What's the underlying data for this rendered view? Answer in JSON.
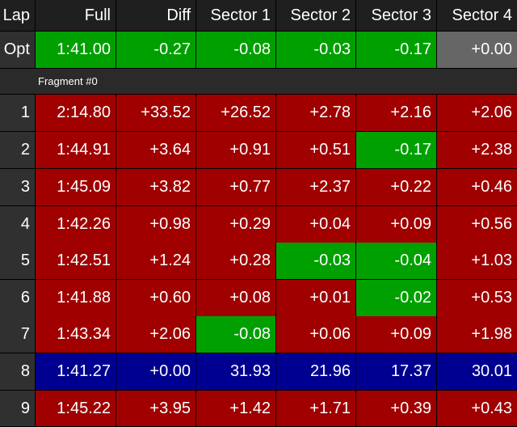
{
  "headers": [
    "Lap",
    "Full",
    "Diff",
    "Sector 1",
    "Sector 2",
    "Sector 3",
    "Sector 4"
  ],
  "opt": {
    "lap": "Opt",
    "cells": [
      "1:41.00",
      "-0.27",
      "-0.08",
      "-0.03",
      "-0.17",
      "+0.00"
    ],
    "colors": [
      "green",
      "green",
      "green",
      "green",
      "green",
      "gray"
    ]
  },
  "fragment_label": "Fragment #0",
  "laps": [
    {
      "lap": "1",
      "cells": [
        "2:14.80",
        "+33.52",
        "+26.52",
        "+2.78",
        "+2.16",
        "+2.06"
      ],
      "colors": [
        "red",
        "red",
        "red",
        "red",
        "red",
        "red"
      ]
    },
    {
      "lap": "2",
      "cells": [
        "1:44.91",
        "+3.64",
        "+0.91",
        "+0.51",
        "-0.17",
        "+2.38"
      ],
      "colors": [
        "red",
        "red",
        "red",
        "red",
        "green",
        "red"
      ]
    },
    {
      "lap": "3",
      "cells": [
        "1:45.09",
        "+3.82",
        "+0.77",
        "+2.37",
        "+0.22",
        "+0.46"
      ],
      "colors": [
        "red",
        "red",
        "red",
        "red",
        "red",
        "red"
      ]
    },
    {
      "lap": "4",
      "cells": [
        "1:42.26",
        "+0.98",
        "+0.29",
        "+0.04",
        "+0.09",
        "+0.56"
      ],
      "colors": [
        "red",
        "red",
        "red",
        "red",
        "red",
        "red"
      ]
    },
    {
      "lap": "5",
      "cells": [
        "1:42.51",
        "+1.24",
        "+0.28",
        "-0.03",
        "-0.04",
        "+1.03"
      ],
      "colors": [
        "red",
        "red",
        "red",
        "green",
        "green",
        "red"
      ]
    },
    {
      "lap": "6",
      "cells": [
        "1:41.88",
        "+0.60",
        "+0.08",
        "+0.01",
        "-0.02",
        "+0.53"
      ],
      "colors": [
        "red",
        "red",
        "red",
        "red",
        "green",
        "red"
      ]
    },
    {
      "lap": "7",
      "cells": [
        "1:43.34",
        "+2.06",
        "-0.08",
        "+0.06",
        "+0.09",
        "+1.98"
      ],
      "colors": [
        "red",
        "red",
        "green",
        "red",
        "red",
        "red"
      ]
    },
    {
      "lap": "8",
      "cells": [
        "1:41.27",
        "+0.00",
        "31.93",
        "21.96",
        "17.37",
        "30.01"
      ],
      "colors": [
        "blue",
        "blue",
        "blue",
        "blue",
        "blue",
        "blue"
      ]
    },
    {
      "lap": "9",
      "cells": [
        "1:45.22",
        "+3.95",
        "+1.42",
        "+1.71",
        "+0.39",
        "+0.43"
      ],
      "colors": [
        "red",
        "red",
        "red",
        "red",
        "red",
        "red"
      ]
    }
  ]
}
